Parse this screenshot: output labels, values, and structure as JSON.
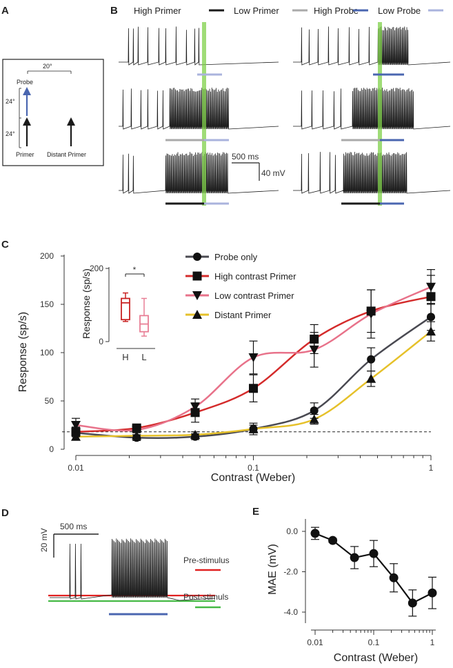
{
  "panels": {
    "A": "A",
    "B": "B",
    "C": "C",
    "D": "D",
    "E": "E"
  },
  "panel_a": {
    "distance_label": "20°",
    "probe_label": "Probe",
    "ecc1_label": "24°",
    "ecc2_label": "24°",
    "primer_label": "Primer",
    "distant_label": "Distant Primer"
  },
  "panel_b": {
    "legend": [
      {
        "label": "High Primer",
        "color": "#1a1a1a"
      },
      {
        "label": "Low Primer",
        "color": "#aaaaaa"
      },
      {
        "label": "High Probe",
        "color": "#4a66b0"
      },
      {
        "label": "Low Probe",
        "color": "#aab3dd"
      }
    ],
    "scale_time": "500 ms",
    "scale_volt": "40 mV",
    "highlight_color": "#7fd04a"
  },
  "panel_d": {
    "scale_time": "500 ms",
    "scale_volt": "20 mV",
    "pre_label": "Pre-stimulus",
    "post_label": "Post-stimuls",
    "pre_color": "#e02020",
    "post_color": "#44b944",
    "probe_color": "#4a66b0"
  },
  "chart_data": [
    {
      "type": "line",
      "panel": "C",
      "xlabel": "Contrast (Weber)",
      "ylabel": "Response (sp/s)",
      "xscale": "log",
      "xlim": [
        0.01,
        1
      ],
      "ylim": [
        0,
        200
      ],
      "xticks": [
        "0.01",
        "0.1",
        "1"
      ],
      "yticks": [
        "0",
        "50",
        "100",
        "150",
        "200"
      ],
      "x": [
        0.01,
        0.022,
        0.047,
        0.1,
        0.22,
        0.46,
        1.0
      ],
      "baseline": 18,
      "series": [
        {
          "name": "Probe only",
          "color": "#4a4a52",
          "marker": "circle",
          "values": [
            17,
            12,
            13,
            21,
            40,
            93,
            137
          ],
          "errors": [
            4,
            3,
            3,
            6,
            8,
            12,
            14
          ]
        },
        {
          "name": "High contrast Primer",
          "color": "#d42b2b",
          "marker": "square",
          "values": [
            18,
            22,
            38,
            63,
            114,
            143,
            158
          ],
          "errors": [
            5,
            4,
            10,
            14,
            15,
            22,
            22
          ]
        },
        {
          "name": "Low contrast Primer",
          "color": "#e8728a",
          "marker": "triangle-down",
          "values": [
            25,
            20,
            44,
            95,
            103,
            140,
            168
          ],
          "errors": [
            7,
            5,
            8,
            17,
            18,
            25,
            18
          ]
        },
        {
          "name": "Distant Primer",
          "color": "#e6c12a",
          "marker": "triangle-up",
          "values": [
            13,
            14,
            15,
            21,
            31,
            73,
            122
          ],
          "errors": [
            3,
            3,
            3,
            4,
            5,
            8,
            10
          ]
        }
      ],
      "legend_position": "upper-middle"
    },
    {
      "type": "box",
      "panel": "C-inset",
      "ylabel": "Response (sp/s)",
      "ylim": [
        0,
        200
      ],
      "yticks": [
        "0",
        "200"
      ],
      "categories": [
        "H",
        "L"
      ],
      "significance": "*",
      "boxes": [
        {
          "name": "H",
          "color": "#c82020",
          "min": 55,
          "q1": 60,
          "median": 106,
          "q3": 118,
          "max": 133
        },
        {
          "name": "L",
          "color": "#e87e95",
          "min": 15,
          "q1": 27,
          "median": 48,
          "q3": 71,
          "max": 118
        }
      ]
    },
    {
      "type": "line",
      "panel": "E",
      "xlabel": "Contrast (Weber)",
      "ylabel": "MAE (mV)",
      "xscale": "log",
      "xlim": [
        0.008,
        1.1
      ],
      "ylim": [
        -4.8,
        0.5
      ],
      "xticks": [
        "0.01",
        "0.1",
        "1"
      ],
      "yticks": [
        "0.0",
        "-2.0",
        "-4.0"
      ],
      "x": [
        0.01,
        0.02,
        0.047,
        0.1,
        0.22,
        0.46,
        1.0
      ],
      "values": [
        -0.1,
        -0.45,
        -1.3,
        -1.1,
        -2.3,
        -3.55,
        -3.05
      ],
      "errors": [
        0.3,
        0.1,
        0.55,
        0.65,
        0.7,
        0.65,
        0.78
      ]
    }
  ]
}
